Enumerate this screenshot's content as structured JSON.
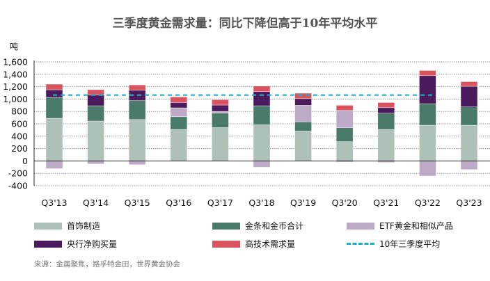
{
  "chart_data": {
    "type": "bar",
    "stacked": true,
    "title": "三季度黄金需求量：同比下降但高于10年平均水平",
    "ylabel": "吨",
    "ylim": [
      -400,
      1600
    ],
    "yticks": [
      "-400",
      "-200",
      "0",
      "200",
      "400",
      "600",
      "800",
      "1,000",
      "1,200",
      "1,400",
      "1,600"
    ],
    "ytick_values": [
      -400,
      -200,
      0,
      200,
      400,
      600,
      800,
      1000,
      1200,
      1400,
      1600
    ],
    "grid": true,
    "legend": "bottom",
    "categories": [
      "Q3'13",
      "Q3'14",
      "Q3'15",
      "Q3'16",
      "Q3'17",
      "Q3'18",
      "Q3'19",
      "Q3'20",
      "Q3'21",
      "Q3'22",
      "Q3'23"
    ],
    "series": [
      {
        "name": "首饰制造",
        "color": "#adc1b8",
        "values": [
          689,
          644,
          670,
          509,
          539,
          584,
          483,
          311,
          509,
          577,
          577
        ]
      },
      {
        "name": "金条和金币合计",
        "color": "#4a7a6a",
        "values": [
          337,
          247,
          304,
          206,
          233,
          307,
          150,
          225,
          263,
          348,
          296
        ]
      },
      {
        "name": "ETF黄金和相似产品",
        "color": "#bcaac6",
        "values": [
          -124,
          -49,
          -60,
          143,
          29,
          -101,
          266,
          280,
          -25,
          -243,
          -139
        ]
      },
      {
        "name": "央行净购买量",
        "color": "#4a1a5c",
        "values": [
          124,
          173,
          168,
          86,
          102,
          229,
          108,
          -12,
          89,
          453,
          333
        ]
      },
      {
        "name": "高技术需求量",
        "color": "#d9545f",
        "values": [
          90,
          88,
          86,
          90,
          86,
          90,
          87,
          83,
          83,
          83,
          75
        ]
      }
    ],
    "reference_line": {
      "name": "10年三季度平均",
      "color": "#1ab0c8",
      "value": 1064
    }
  },
  "source": "来源：金属聚焦，路孚特金田，世界黄金协会"
}
